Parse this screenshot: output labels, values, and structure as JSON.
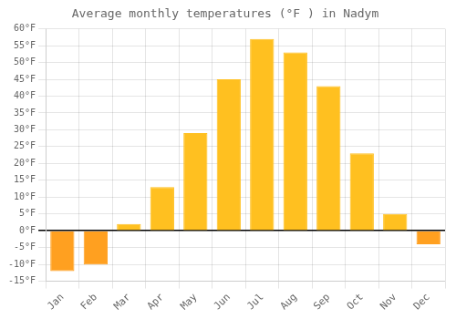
{
  "chart_data": {
    "type": "bar",
    "title": "Average monthly temperatures (°F ) in Nadym",
    "categories": [
      "Jan",
      "Feb",
      "Mar",
      "Apr",
      "May",
      "Jun",
      "Jul",
      "Aug",
      "Sep",
      "Oct",
      "Nov",
      "Dec"
    ],
    "values": [
      -12,
      -10,
      2,
      13,
      29,
      45,
      57,
      53,
      43,
      23,
      5,
      -4
    ],
    "colors": [
      "#FFA020",
      "#FFA020",
      "#FFC020",
      "#FFC020",
      "#FFC020",
      "#FFC020",
      "#FFC020",
      "#FFC020",
      "#FFC020",
      "#FFC020",
      "#FFC020",
      "#FFA020"
    ],
    "ylim": [
      -15,
      60
    ],
    "yticks": [
      {
        "value": -15,
        "label": "-15°F"
      },
      {
        "value": -10,
        "label": "-10°F"
      },
      {
        "value": -5,
        "label": "-5°F"
      },
      {
        "value": 0,
        "label": "0°F"
      },
      {
        "value": 5,
        "label": "5°F"
      },
      {
        "value": 10,
        "label": "10°F"
      },
      {
        "value": 15,
        "label": "15°F"
      },
      {
        "value": 20,
        "label": "20°F"
      },
      {
        "value": 25,
        "label": "25°F"
      },
      {
        "value": 30,
        "label": "30°F"
      },
      {
        "value": 35,
        "label": "35°F"
      },
      {
        "value": 40,
        "label": "40°F"
      },
      {
        "value": 45,
        "label": "45°F"
      },
      {
        "value": 50,
        "label": "50°F"
      },
      {
        "value": 55,
        "label": "55°F"
      },
      {
        "value": 60,
        "label": "60°F"
      }
    ],
    "grid": true
  }
}
